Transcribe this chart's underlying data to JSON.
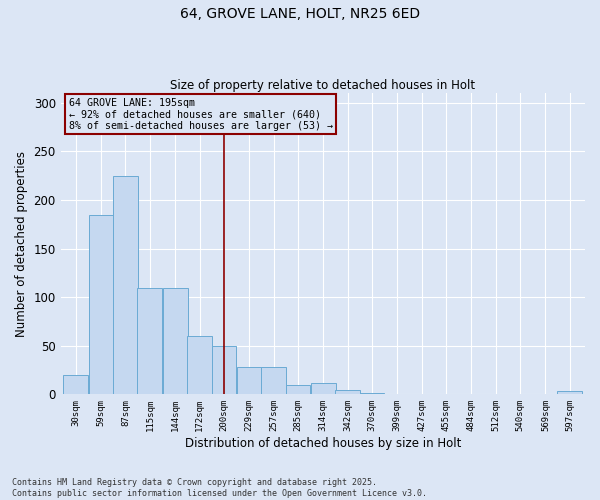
{
  "title_line1": "64, GROVE LANE, HOLT, NR25 6ED",
  "title_line2": "Size of property relative to detached houses in Holt",
  "xlabel": "Distribution of detached houses by size in Holt",
  "ylabel": "Number of detached properties",
  "bar_color": "#c5d8f0",
  "bar_edge_color": "#6aaad4",
  "bg_color": "#dce6f5",
  "grid_color": "#ffffff",
  "vline_color": "#8b0000",
  "annotation_box_color": "#8b0000",
  "bins_centers": [
    30,
    59,
    87,
    115,
    144,
    172,
    200,
    229,
    257,
    285,
    314,
    342,
    370,
    399,
    427,
    455,
    484,
    512,
    540,
    569,
    597
  ],
  "values": [
    20,
    185,
    225,
    109,
    109,
    60,
    50,
    28,
    28,
    10,
    12,
    4,
    1,
    0,
    0,
    0,
    0,
    0,
    0,
    0,
    3
  ],
  "annotation_title": "64 GROVE LANE: 195sqm",
  "annotation_line2": "← 92% of detached houses are smaller (640)",
  "annotation_line3": "8% of semi-detached houses are larger (53) →",
  "footer_line1": "Contains HM Land Registry data © Crown copyright and database right 2025.",
  "footer_line2": "Contains public sector information licensed under the Open Government Licence v3.0.",
  "ylim": [
    0,
    310
  ],
  "yticks": [
    0,
    50,
    100,
    150,
    200,
    250,
    300
  ],
  "vline_x": 200
}
